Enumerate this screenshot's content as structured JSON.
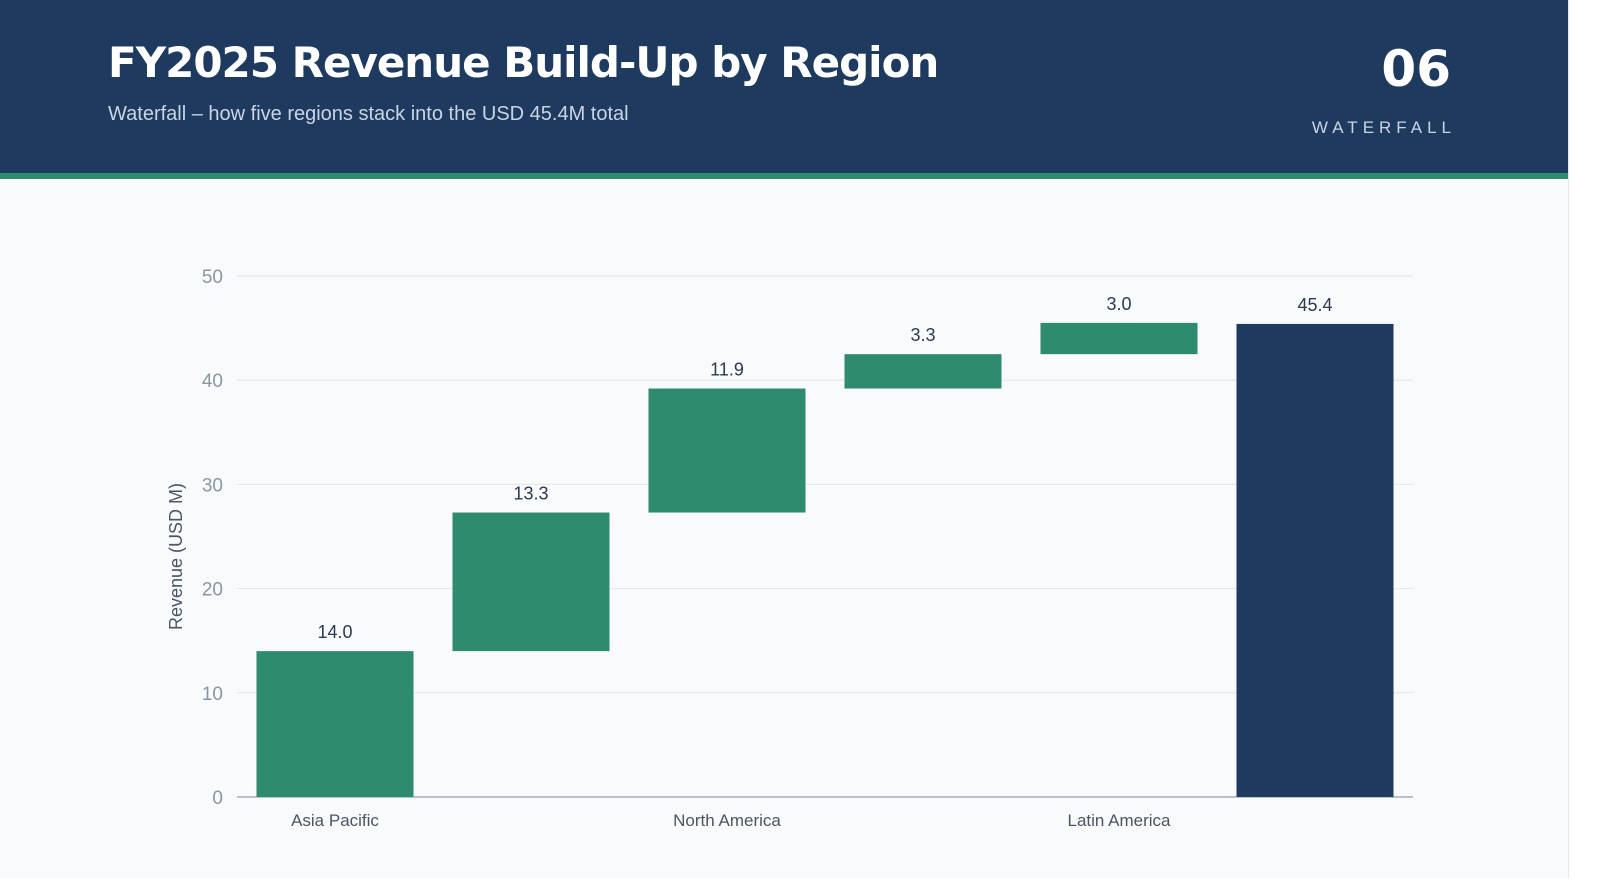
{
  "slide": {
    "title": "FY2025 Revenue Build-Up by Region",
    "subtitle": "Waterfall – how five regions stack into the USD 45.4M total",
    "number": "06",
    "section_label": "WATERFALL"
  },
  "colors": {
    "header_bg": "#1f3a5f",
    "accent": "#2e8b6d",
    "increment_bar": "#2e8b6d",
    "total_bar": "#1f3a5f",
    "slide_bg": "#f8fafc"
  },
  "chart_data": {
    "type": "bar",
    "subtype": "waterfall",
    "ylabel": "Revenue (USD M)",
    "ylim": [
      0,
      50
    ],
    "yticks": [
      0,
      10,
      20,
      30,
      40,
      50
    ],
    "grid": true,
    "legend": "none",
    "categories": [
      "Asia Pacific",
      "",
      "North America",
      "",
      "Latin America",
      ""
    ],
    "bars": [
      {
        "category": "Asia Pacific",
        "kind": "increment",
        "base": 0,
        "value": 14.0,
        "label": "14.0"
      },
      {
        "category": "",
        "kind": "increment",
        "base": 14.0,
        "value": 13.3,
        "label": "13.3"
      },
      {
        "category": "North America",
        "kind": "increment",
        "base": 27.3,
        "value": 11.9,
        "label": "11.9"
      },
      {
        "category": "",
        "kind": "increment",
        "base": 39.2,
        "value": 3.3,
        "label": "3.3"
      },
      {
        "category": "Latin America",
        "kind": "increment",
        "base": 42.5,
        "value": 3.0,
        "label": "3.0"
      },
      {
        "category": "",
        "kind": "total",
        "base": 0,
        "value": 45.4,
        "label": "45.4"
      }
    ]
  }
}
